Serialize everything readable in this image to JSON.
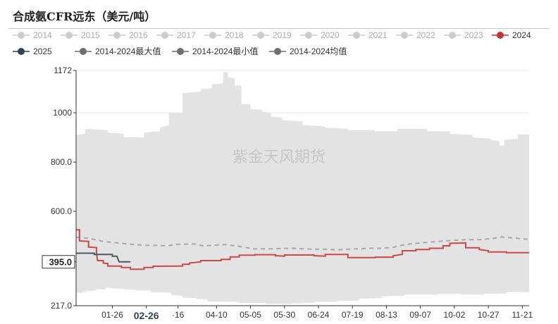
{
  "chart_data": {
    "type": "line",
    "title": "合成氨CFR远东（美元/吨）",
    "watermark": "紫金天风期货",
    "ylim": [
      217.0,
      1172
    ],
    "y_ticks": [
      "1172",
      "1000",
      "800.0",
      "600.0",
      "395.0",
      "217.0"
    ],
    "y_tick_values": [
      1172,
      1000,
      800,
      600,
      395,
      217
    ],
    "x_tick_labels": [
      "01-26",
      "02-26",
      "·16",
      "04-10",
      "05-05",
      "05-30",
      "06-24",
      "07-19",
      "08-13",
      "09-07",
      "10-02",
      "10-27",
      "11-21"
    ],
    "x_tick_positions": [
      0.08,
      0.155,
      0.225,
      0.31,
      0.385,
      0.46,
      0.535,
      0.61,
      0.685,
      0.76,
      0.835,
      0.91,
      0.985
    ],
    "highlight_x_label": "02-26",
    "highlight_y_label": "395.0",
    "legend": [
      {
        "name": "2014",
        "color": "#cccccc"
      },
      {
        "name": "2015",
        "color": "#cccccc"
      },
      {
        "name": "2016",
        "color": "#cccccc"
      },
      {
        "name": "2017",
        "color": "#cccccc"
      },
      {
        "name": "2018",
        "color": "#cccccc"
      },
      {
        "name": "2019",
        "color": "#cccccc"
      },
      {
        "name": "2020",
        "color": "#cccccc"
      },
      {
        "name": "2021",
        "color": "#cccccc"
      },
      {
        "name": "2022",
        "color": "#cccccc"
      },
      {
        "name": "2023",
        "color": "#cccccc"
      },
      {
        "name": "2024",
        "color": "#c23531"
      },
      {
        "name": "2025",
        "color": "#2f4554"
      },
      {
        "name": "2014-2024最大值",
        "color": "#6e6e6e"
      },
      {
        "name": "2014-2024最小值",
        "color": "#6e6e6e"
      },
      {
        "name": "2014-2024均值",
        "color": "#6e6e6e"
      }
    ],
    "colors": {
      "band": "#e3e3e3",
      "s2024": "#c94a48",
      "s2025": "#4b5866",
      "avg": "#a9a9a9",
      "axis": "#333333",
      "grid": "#e6e6e6"
    },
    "band_max": [
      [
        0,
        910
      ],
      [
        0.04,
        915
      ],
      [
        0.04,
        935
      ],
      [
        0.14,
        930
      ],
      [
        0.14,
        920
      ],
      [
        0.21,
        915
      ],
      [
        0.21,
        900
      ],
      [
        0.3,
        900
      ],
      [
        0.3,
        920
      ],
      [
        0.37,
        925
      ],
      [
        0.37,
        940
      ],
      [
        0.41,
        950
      ],
      [
        0.41,
        1000
      ],
      [
        0.47,
        1000
      ],
      [
        0.47,
        1080
      ],
      [
        0.55,
        1085
      ],
      [
        0.55,
        1095
      ],
      [
        0.6,
        1100
      ],
      [
        0.6,
        1115
      ],
      [
        0.65,
        1120
      ],
      [
        0.65,
        1165
      ],
      [
        0.67,
        1165
      ],
      [
        0.67,
        1145
      ],
      [
        0.7,
        1140
      ],
      [
        0.7,
        1110
      ],
      [
        0.73,
        1110
      ],
      [
        0.73,
        1035
      ],
      [
        0.77,
        1035
      ],
      [
        0.77,
        1015
      ],
      [
        0.82,
        1012
      ],
      [
        0.82,
        1005
      ],
      [
        0.86,
        1000
      ],
      [
        0.86,
        985
      ],
      [
        0.91,
        980
      ],
      [
        0.91,
        970
      ],
      [
        1.0,
        965
      ],
      [
        1.0,
        950
      ],
      [
        1.1,
        945
      ],
      [
        1.1,
        940
      ],
      [
        1.2,
        935
      ],
      [
        1.2,
        930
      ],
      [
        1.32,
        930
      ],
      [
        1.32,
        925
      ],
      [
        1.42,
        925
      ],
      [
        1.42,
        935
      ],
      [
        1.55,
        935
      ],
      [
        1.55,
        925
      ],
      [
        1.65,
        925
      ],
      [
        1.65,
        915
      ],
      [
        1.75,
        910
      ],
      [
        1.75,
        900
      ],
      [
        1.83,
        895
      ],
      [
        1.83,
        890
      ],
      [
        1.87,
        885
      ],
      [
        1.87,
        868
      ],
      [
        1.89,
        868
      ],
      [
        1.89,
        890
      ],
      [
        1.95,
        895
      ],
      [
        1.95,
        912
      ],
      [
        2.0,
        912
      ]
    ],
    "band_min": [
      [
        0,
        270
      ],
      [
        0.02,
        268
      ],
      [
        0.03,
        272
      ],
      [
        0.04,
        272
      ],
      [
        0.04,
        277
      ],
      [
        0.09,
        279
      ],
      [
        0.09,
        283
      ],
      [
        0.13,
        283
      ],
      [
        0.13,
        290
      ],
      [
        0.15,
        290
      ],
      [
        0.15,
        287
      ],
      [
        0.21,
        286
      ],
      [
        0.21,
        283
      ],
      [
        0.26,
        283
      ],
      [
        0.26,
        279
      ],
      [
        0.33,
        279
      ],
      [
        0.33,
        272
      ],
      [
        0.42,
        270
      ],
      [
        0.42,
        260
      ],
      [
        0.47,
        257
      ],
      [
        0.47,
        250
      ],
      [
        0.53,
        248
      ],
      [
        0.53,
        245
      ],
      [
        0.58,
        242
      ],
      [
        0.58,
        235
      ],
      [
        0.72,
        232
      ],
      [
        0.72,
        228
      ],
      [
        0.84,
        228
      ],
      [
        0.84,
        224
      ],
      [
        0.95,
        224
      ],
      [
        0.95,
        226
      ],
      [
        1.05,
        229
      ],
      [
        1.05,
        232
      ],
      [
        1.15,
        233
      ],
      [
        1.15,
        236
      ],
      [
        1.25,
        238
      ],
      [
        1.25,
        245
      ],
      [
        1.35,
        248
      ],
      [
        1.35,
        255
      ],
      [
        1.45,
        258
      ],
      [
        1.45,
        262
      ],
      [
        1.6,
        262
      ],
      [
        1.6,
        265
      ],
      [
        1.7,
        265
      ],
      [
        1.7,
        262
      ],
      [
        1.8,
        262
      ],
      [
        1.8,
        266
      ],
      [
        1.9,
        266
      ],
      [
        1.9,
        272
      ],
      [
        2.0,
        272
      ]
    ],
    "s2024": [
      [
        0,
        525
      ],
      [
        0.015,
        525
      ],
      [
        0.015,
        480
      ],
      [
        0.055,
        478
      ],
      [
        0.055,
        455
      ],
      [
        0.09,
        453
      ],
      [
        0.09,
        430
      ],
      [
        0.095,
        400
      ],
      [
        0.12,
        400
      ],
      [
        0.12,
        390
      ],
      [
        0.14,
        388
      ],
      [
        0.14,
        378
      ],
      [
        0.2,
        378
      ],
      [
        0.2,
        372
      ],
      [
        0.24,
        372
      ],
      [
        0.24,
        365
      ],
      [
        0.3,
        365
      ],
      [
        0.3,
        372
      ],
      [
        0.34,
        372
      ],
      [
        0.34,
        377
      ],
      [
        0.47,
        378
      ],
      [
        0.47,
        385
      ],
      [
        0.5,
        385
      ],
      [
        0.5,
        390
      ],
      [
        0.55,
        395
      ],
      [
        0.55,
        400
      ],
      [
        0.64,
        400
      ],
      [
        0.64,
        405
      ],
      [
        0.68,
        405
      ],
      [
        0.68,
        415
      ],
      [
        0.72,
        415
      ],
      [
        0.72,
        422
      ],
      [
        0.79,
        422
      ],
      [
        0.79,
        424
      ],
      [
        0.88,
        424
      ],
      [
        0.88,
        420
      ],
      [
        0.92,
        418
      ],
      [
        0.92,
        423
      ],
      [
        1.05,
        423
      ],
      [
        1.05,
        420
      ],
      [
        1.1,
        418
      ],
      [
        1.1,
        425
      ],
      [
        1.2,
        425
      ],
      [
        1.2,
        412
      ],
      [
        1.32,
        412
      ],
      [
        1.32,
        414
      ],
      [
        1.4,
        414
      ],
      [
        1.4,
        420
      ],
      [
        1.44,
        425
      ],
      [
        1.44,
        440
      ],
      [
        1.5,
        440
      ],
      [
        1.5,
        445
      ],
      [
        1.56,
        445
      ],
      [
        1.56,
        450
      ],
      [
        1.62,
        450
      ],
      [
        1.62,
        460
      ],
      [
        1.65,
        460
      ],
      [
        1.65,
        470
      ],
      [
        1.72,
        472
      ],
      [
        1.72,
        452
      ],
      [
        1.78,
        452
      ],
      [
        1.78,
        445
      ],
      [
        1.82,
        440
      ],
      [
        1.82,
        435
      ],
      [
        1.9,
        435
      ],
      [
        1.9,
        432
      ],
      [
        2.0,
        432
      ]
    ],
    "s2025": [
      [
        0,
        430
      ],
      [
        0.08,
        430
      ],
      [
        0.08,
        425
      ],
      [
        0.16,
        425
      ],
      [
        0.16,
        418
      ],
      [
        0.18,
        418
      ],
      [
        0.19,
        395
      ],
      [
        0.24,
        395
      ]
    ],
    "s_avg": [
      [
        0,
        495
      ],
      [
        0.06,
        490
      ],
      [
        0.12,
        478
      ],
      [
        0.2,
        470
      ],
      [
        0.25,
        466
      ],
      [
        0.3,
        462
      ],
      [
        0.35,
        462
      ],
      [
        0.4,
        460
      ],
      [
        0.45,
        466
      ],
      [
        0.52,
        468
      ],
      [
        0.56,
        460
      ],
      [
        0.6,
        462
      ],
      [
        0.66,
        465
      ],
      [
        0.72,
        458
      ],
      [
        0.78,
        448
      ],
      [
        0.86,
        448
      ],
      [
        0.95,
        450
      ],
      [
        1.0,
        448
      ],
      [
        1.05,
        446
      ],
      [
        1.1,
        446
      ],
      [
        1.15,
        444
      ],
      [
        1.2,
        446
      ],
      [
        1.3,
        450
      ],
      [
        1.35,
        450
      ],
      [
        1.4,
        454
      ],
      [
        1.45,
        465
      ],
      [
        1.52,
        472
      ],
      [
        1.6,
        478
      ],
      [
        1.66,
        482
      ],
      [
        1.72,
        485
      ],
      [
        1.78,
        485
      ],
      [
        1.84,
        490
      ],
      [
        1.88,
        496
      ],
      [
        1.93,
        492
      ],
      [
        2.0,
        486
      ]
    ]
  }
}
